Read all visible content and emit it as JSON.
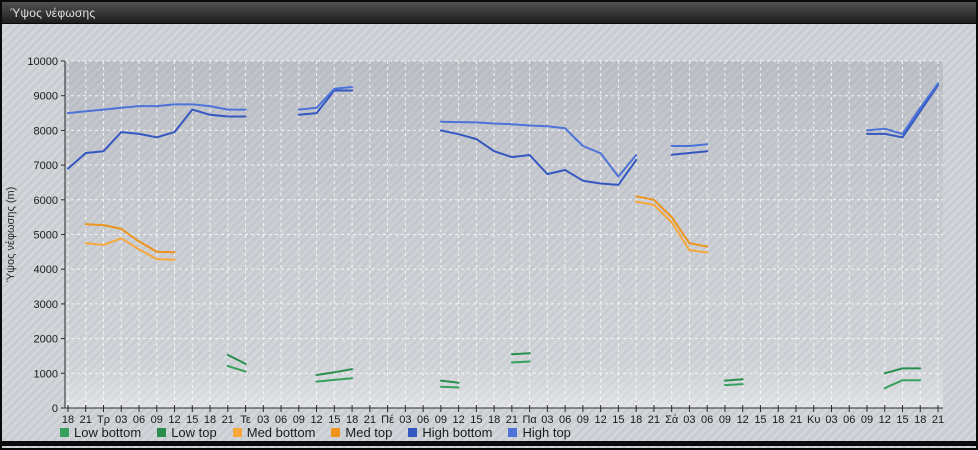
{
  "window": {
    "title": "Ύψος νέφωσης"
  },
  "chart_data": {
    "type": "line",
    "title": "Ύψος νέφωσης",
    "xlabel": "",
    "ylabel": "Ύψος νέφωσης (m)",
    "ylim": [
      0,
      10000
    ],
    "y_tick_step": 1000,
    "grid": "white dashed horizontal every 1000 m and vertical every 3 h",
    "legend_position": "bottom-left",
    "x_labels": [
      "18",
      "21",
      "Τρ",
      "03",
      "06",
      "09",
      "12",
      "15",
      "18",
      "21",
      "Τε",
      "03",
      "06",
      "09",
      "12",
      "15",
      "18",
      "21",
      "Πέ",
      "03",
      "06",
      "09",
      "12",
      "15",
      "18",
      "21",
      "Πα",
      "03",
      "06",
      "09",
      "12",
      "15",
      "18",
      "21",
      "Σά",
      "03",
      "06",
      "09",
      "12",
      "15",
      "18",
      "21",
      "Κυ",
      "03",
      "06",
      "09",
      "12",
      "15",
      "18",
      "21"
    ],
    "series": [
      {
        "name": "Low bottom",
        "color": "#37a05c",
        "segments": [
          {
            "start": 9,
            "values": [
              1210,
              1050
            ]
          },
          {
            "start": 14,
            "values": [
              760,
              810,
              860
            ]
          },
          {
            "start": 21,
            "values": [
              610,
              590
            ]
          },
          {
            "start": 25,
            "values": [
              1310,
              1340
            ]
          },
          {
            "start": 37,
            "values": [
              660,
              690
            ]
          },
          {
            "start": 46,
            "values": [
              570,
              800,
              800
            ]
          }
        ]
      },
      {
        "name": "Low top",
        "color": "#2a8f4e",
        "segments": [
          {
            "start": 9,
            "values": [
              1530,
              1270
            ]
          },
          {
            "start": 14,
            "values": [
              950,
              1030,
              1120
            ]
          },
          {
            "start": 21,
            "values": [
              790,
              730
            ]
          },
          {
            "start": 25,
            "values": [
              1550,
              1580
            ]
          },
          {
            "start": 37,
            "values": [
              790,
              830
            ]
          },
          {
            "start": 46,
            "values": [
              1000,
              1140,
              1140
            ]
          }
        ]
      },
      {
        "name": "Med bottom",
        "color": "#f6a83c",
        "segments": [
          {
            "start": 1,
            "values": [
              4750,
              4700,
              4890,
              4570,
              4290,
              4270
            ]
          },
          {
            "start": 32,
            "values": [
              5950,
              5850,
              5350,
              4550,
              4480
            ]
          }
        ]
      },
      {
        "name": "Med top",
        "color": "#ee941c",
        "segments": [
          {
            "start": 1,
            "values": [
              5300,
              5270,
              5160,
              4800,
              4500,
              4490
            ]
          },
          {
            "start": 32,
            "values": [
              6100,
              6000,
              5500,
              4750,
              4650
            ]
          }
        ]
      },
      {
        "name": "High bottom",
        "color": "#3457c0",
        "segments": [
          {
            "start": 0,
            "values": [
              6900,
              7350,
              7400,
              7950,
              7900,
              7800,
              7950,
              8600,
              8450,
              8400,
              8400
            ]
          },
          {
            "start": 13,
            "values": [
              8450,
              8500,
              9150,
              9150
            ]
          },
          {
            "start": 21,
            "values": [
              8000,
              7890,
              7750,
              7400,
              7230,
              7290,
              6740,
              6860,
              6550,
              6470,
              6430,
              7150
            ]
          },
          {
            "start": 34,
            "values": [
              7300,
              7350,
              7400
            ]
          },
          {
            "start": 45,
            "values": [
              7900,
              7900,
              7800,
              8550,
              9300
            ]
          }
        ]
      },
      {
        "name": "High top",
        "color": "#4d73d8",
        "segments": [
          {
            "start": 0,
            "values": [
              8500,
              8550,
              8600,
              8650,
              8700,
              8700,
              8750,
              8750,
              8700,
              8600,
              8600
            ]
          },
          {
            "start": 13,
            "values": [
              8600,
              8650,
              9200,
              9250
            ]
          },
          {
            "start": 21,
            "values": [
              8250,
              8240,
              8230,
              8200,
              8180,
              8140,
              8120,
              8060,
              7550,
              7340,
              6670,
              7290
            ]
          },
          {
            "start": 34,
            "values": [
              7550,
              7550,
              7600
            ]
          },
          {
            "start": 45,
            "values": [
              8000,
              8050,
              7900,
              8650,
              9350
            ]
          }
        ]
      }
    ]
  }
}
